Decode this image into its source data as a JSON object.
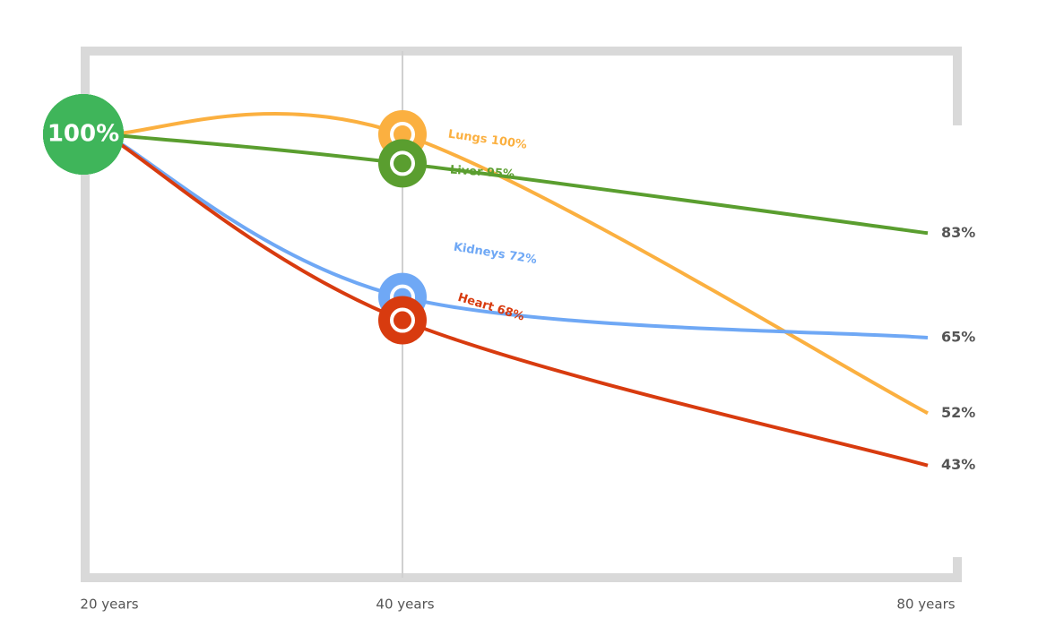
{
  "chart_data": {
    "type": "line",
    "categories": [
      "20 years",
      "40 years",
      "80 years"
    ],
    "start_label": "100%",
    "ylim": [
      30,
      100
    ],
    "series": [
      {
        "name": "Lungs",
        "color": "#fbb040",
        "values": [
          100,
          100,
          52
        ],
        "label": "Lungs 100%",
        "end_label": "52%"
      },
      {
        "name": "Liver",
        "color": "#5a9e2f",
        "values": [
          100,
          95,
          83
        ],
        "label": "Liver 95%",
        "end_label": "83%"
      },
      {
        "name": "Kidneys",
        "color": "#6fa8f5",
        "values": [
          100,
          72,
          65
        ],
        "label": "Kidneys 72%",
        "end_label": "65%"
      },
      {
        "name": "Heart",
        "color": "#d83b0f",
        "values": [
          100,
          68,
          43
        ],
        "label": "Heart 68%",
        "end_label": "43%"
      }
    ]
  }
}
